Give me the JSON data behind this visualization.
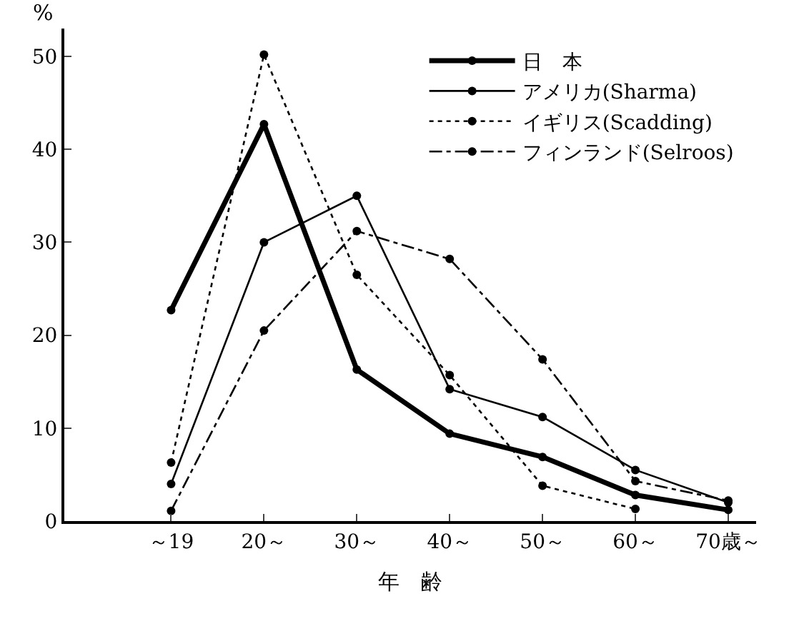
{
  "chart_data": {
    "type": "line",
    "ylabel": "%",
    "xlabel": "年　齢",
    "categories": [
      "～19",
      "20～",
      "30～",
      "40～",
      "50～",
      "60～",
      "70歳～"
    ],
    "series": [
      {
        "name": "日　本",
        "color": "#000000",
        "line_style": "solid",
        "values": [
          22.7,
          42.7,
          16.3,
          9.4,
          6.9,
          2.8,
          1.2
        ]
      },
      {
        "name": "アメリカ(Sharma)",
        "color": "#000000",
        "line_style": "solid",
        "values": [
          4.0,
          30.0,
          35.0,
          14.2,
          11.2,
          5.5,
          2.0
        ]
      },
      {
        "name": "イギリス(Scadding)",
        "color": "#000000",
        "line_style": "dotted",
        "values": [
          6.3,
          50.2,
          26.5,
          15.7,
          3.8,
          1.3,
          null
        ]
      },
      {
        "name": "フィンランド(Selroos)",
        "color": "#000000",
        "line_style": "dashdot",
        "values": [
          1.1,
          20.5,
          31.2,
          28.2,
          17.4,
          4.3,
          2.2
        ]
      }
    ],
    "ylim": [
      0,
      53
    ],
    "yticks": [
      0,
      10,
      20,
      30,
      40,
      50
    ],
    "legend": "top right",
    "marker": "circle"
  }
}
